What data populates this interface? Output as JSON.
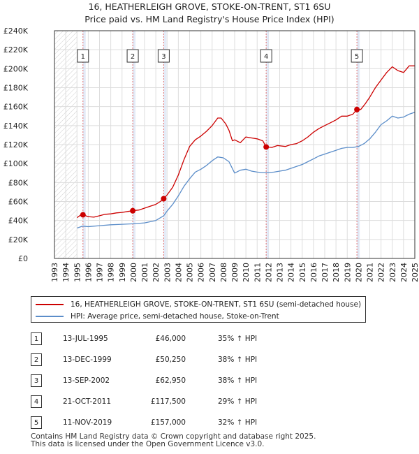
{
  "title_line1": "16, HEATHERLEIGH GROVE, STOKE-ON-TRENT, ST1 6SU",
  "title_line2": "Price paid vs. HM Land Registry's House Price Index (HPI)",
  "colors": {
    "property": "#cc0000",
    "hpi": "#5b8dc9",
    "sale_band": "#dde6f5",
    "marker_line": "#e07070"
  },
  "chart_data": {
    "type": "line",
    "ylim": [
      0,
      240000
    ],
    "xlim": [
      1993.0,
      2025.0
    ],
    "y_ticks": [
      {
        "value": 0,
        "label": "£0"
      },
      {
        "value": 20000,
        "label": "£20K"
      },
      {
        "value": 40000,
        "label": "£40K"
      },
      {
        "value": 60000,
        "label": "£60K"
      },
      {
        "value": 80000,
        "label": "£80K"
      },
      {
        "value": 100000,
        "label": "£100K"
      },
      {
        "value": 120000,
        "label": "£120K"
      },
      {
        "value": 140000,
        "label": "£140K"
      },
      {
        "value": 160000,
        "label": "£160K"
      },
      {
        "value": 180000,
        "label": "£180K"
      },
      {
        "value": 200000,
        "label": "£200K"
      },
      {
        "value": 220000,
        "label": "£220K"
      },
      {
        "value": 240000,
        "label": "£240K"
      }
    ],
    "x_ticks": [
      "1993",
      "1994",
      "1995",
      "1996",
      "1997",
      "1998",
      "1999",
      "2000",
      "2001",
      "2002",
      "2003",
      "2004",
      "2005",
      "2006",
      "2007",
      "2008",
      "2009",
      "2010",
      "2011",
      "2012",
      "2013",
      "2014",
      "2015",
      "2016",
      "2017",
      "2018",
      "2019",
      "2020",
      "2021",
      "2022",
      "2023",
      "2024",
      "2025"
    ],
    "hatched_until": 1995.0,
    "series": [
      {
        "name": "16, HEATHERLEIGH GROVE, STOKE-ON-TRENT, ST1 6SU (semi-detached house)",
        "x": [
          1995.0,
          1995.3,
          1995.53,
          1996.0,
          1996.5,
          1997.0,
          1997.5,
          1998.0,
          1998.5,
          1999.0,
          1999.5,
          1999.95,
          2000.5,
          2001.0,
          2001.5,
          2002.0,
          2002.4,
          2002.7,
          2003.0,
          2003.5,
          2004.0,
          2004.5,
          2005.0,
          2005.5,
          2006.0,
          2006.5,
          2007.0,
          2007.5,
          2007.8,
          2008.2,
          2008.5,
          2008.8,
          2009.0,
          2009.5,
          2010.0,
          2010.5,
          2011.0,
          2011.5,
          2011.8,
          2012.3,
          2012.8,
          2013.5,
          2014.0,
          2014.5,
          2015.0,
          2015.5,
          2016.0,
          2016.5,
          2017.0,
          2017.5,
          2018.0,
          2018.5,
          2019.0,
          2019.5,
          2019.86,
          2020.2,
          2020.6,
          2021.0,
          2021.5,
          2022.0,
          2022.5,
          2023.0,
          2023.5,
          2024.0,
          2024.5,
          2025.0
        ],
        "y": [
          43000,
          45500,
          46000,
          44000,
          43500,
          45000,
          46500,
          47000,
          48000,
          48500,
          49500,
          50250,
          51000,
          53000,
          55000,
          57000,
          60000,
          62950,
          67000,
          75000,
          88000,
          104000,
          118000,
          125000,
          129000,
          134000,
          140000,
          148000,
          148000,
          142000,
          135000,
          124000,
          125000,
          122000,
          128000,
          127000,
          126000,
          124000,
          117500,
          117000,
          119000,
          118000,
          120000,
          121000,
          124000,
          128000,
          133000,
          137000,
          140000,
          143000,
          146000,
          150000,
          150000,
          152000,
          157000,
          157000,
          163000,
          170000,
          180000,
          188000,
          196000,
          202000,
          198000,
          196000,
          203000,
          203000
        ]
      },
      {
        "name": "HPI: Average price, semi-detached house, Stoke-on-Trent",
        "x": [
          1995.0,
          1995.5,
          1996.0,
          1997.0,
          1998.0,
          1999.0,
          2000.0,
          2001.0,
          2002.0,
          2002.7,
          2003.0,
          2003.5,
          2004.0,
          2004.5,
          2005.0,
          2005.5,
          2006.0,
          2006.5,
          2007.0,
          2007.5,
          2008.0,
          2008.5,
          2009.0,
          2009.5,
          2010.0,
          2010.5,
          2011.0,
          2011.5,
          2012.0,
          2012.5,
          2013.0,
          2013.5,
          2014.0,
          2014.5,
          2015.0,
          2015.5,
          2016.0,
          2016.5,
          2017.0,
          2017.5,
          2018.0,
          2018.5,
          2019.0,
          2019.5,
          2020.0,
          2020.5,
          2021.0,
          2021.5,
          2022.0,
          2022.5,
          2023.0,
          2023.5,
          2024.0,
          2024.5,
          2025.0
        ],
        "y": [
          32000,
          34000,
          33500,
          34500,
          35500,
          36000,
          36500,
          37500,
          40000,
          45000,
          50000,
          57000,
          66000,
          76000,
          84000,
          91000,
          94000,
          98000,
          103000,
          107000,
          106000,
          102000,
          90000,
          93000,
          94000,
          92000,
          91000,
          90500,
          90500,
          91000,
          92000,
          93000,
          95000,
          97000,
          99000,
          102000,
          105000,
          108000,
          110000,
          112000,
          114000,
          116000,
          117000,
          117000,
          118000,
          121000,
          126000,
          133000,
          141000,
          145000,
          150000,
          148000,
          149000,
          152000,
          154000
        ]
      }
    ],
    "sales": [
      {
        "num": "1",
        "x": 1995.53,
        "price": 46000
      },
      {
        "num": "2",
        "x": 1999.95,
        "price": 50250
      },
      {
        "num": "3",
        "x": 2002.7,
        "price": 62950
      },
      {
        "num": "4",
        "x": 2011.8,
        "price": 117500
      },
      {
        "num": "5",
        "x": 2019.86,
        "price": 157000
      }
    ]
  },
  "legend": {
    "property_label": "16, HEATHERLEIGH GROVE, STOKE-ON-TRENT, ST1 6SU (semi-detached house)",
    "hpi_label": "HPI: Average price, semi-detached house, Stoke-on-Trent"
  },
  "sales_table": [
    {
      "num": "1",
      "date": "13-JUL-1995",
      "price": "£46,000",
      "hpi": "35% ↑ HPI"
    },
    {
      "num": "2",
      "date": "13-DEC-1999",
      "price": "£50,250",
      "hpi": "38% ↑ HPI"
    },
    {
      "num": "3",
      "date": "13-SEP-2002",
      "price": "£62,950",
      "hpi": "38% ↑ HPI"
    },
    {
      "num": "4",
      "date": "21-OCT-2011",
      "price": "£117,500",
      "hpi": "29% ↑ HPI"
    },
    {
      "num": "5",
      "date": "11-NOV-2019",
      "price": "£157,000",
      "hpi": "32% ↑ HPI"
    }
  ],
  "footer": {
    "line1": "Contains HM Land Registry data © Crown copyright and database right 2025.",
    "line2": "This data is licensed under the Open Government Licence v3.0."
  }
}
